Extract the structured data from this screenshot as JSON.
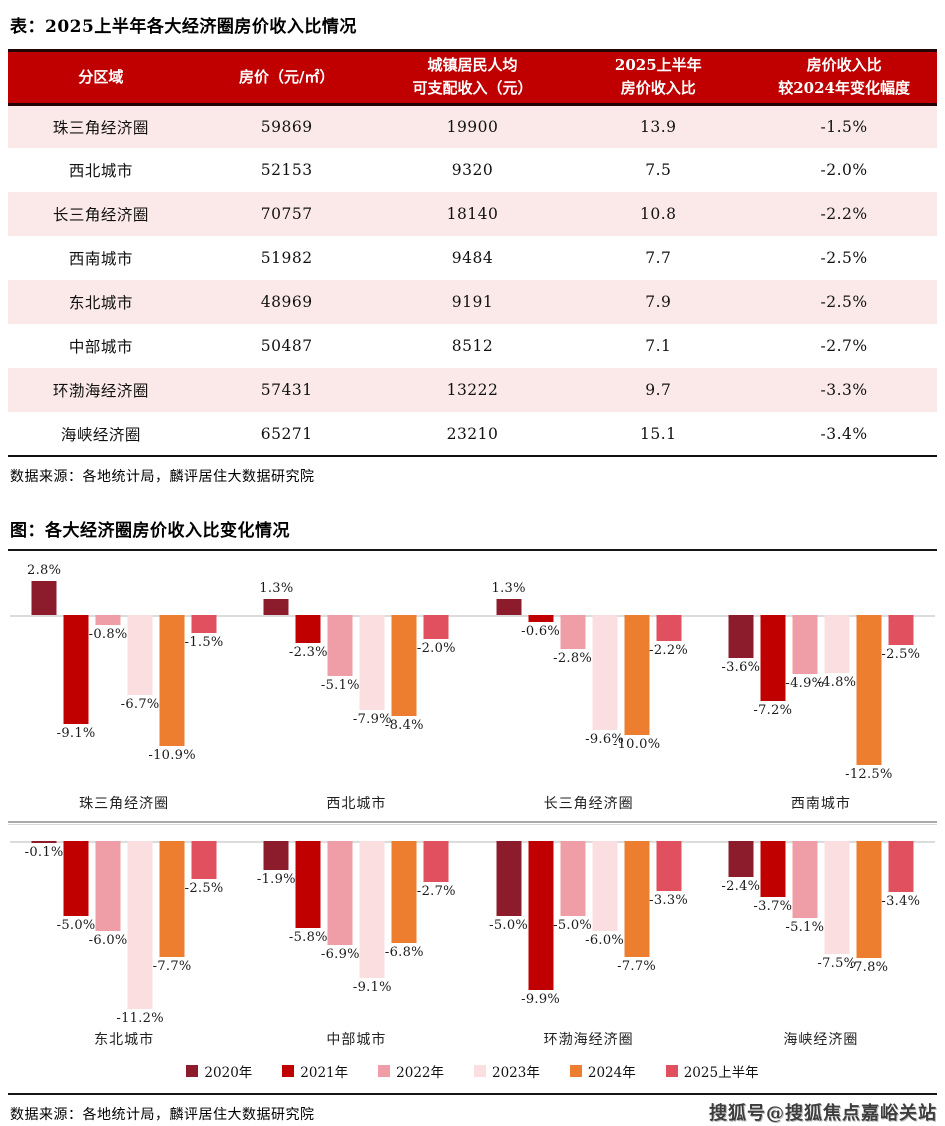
{
  "colors": {
    "table_header_bg": "#c00000",
    "table_row_alt": "#fbe9e9",
    "rule_dark": "#161616",
    "zero_line": "#dcdcdc"
  },
  "table": {
    "title": "表：2025上半年各大经济圈房价收入比情况",
    "headers": [
      [
        "分区域"
      ],
      [
        "房价（元/㎡）"
      ],
      [
        "城镇居民人均",
        "可支配收入（元）"
      ],
      [
        "2025上半年",
        "房价收入比"
      ],
      [
        "房价收入比",
        "较2024年变化幅度"
      ]
    ],
    "rows": [
      [
        "珠三角经济圈",
        "59869",
        "19900",
        "13.9",
        "-1.5%"
      ],
      [
        "西北城市",
        "52153",
        "9320",
        "7.5",
        "-2.0%"
      ],
      [
        "长三角经济圈",
        "70757",
        "18140",
        "10.8",
        "-2.2%"
      ],
      [
        "西南城市",
        "51982",
        "9484",
        "7.7",
        "-2.5%"
      ],
      [
        "东北城市",
        "48969",
        "9191",
        "7.9",
        "-2.5%"
      ],
      [
        "中部城市",
        "50487",
        "8512",
        "7.1",
        "-2.7%"
      ],
      [
        "环渤海经济圈",
        "57431",
        "13222",
        "9.7",
        "-3.3%"
      ],
      [
        "海峡经济圈",
        "65271",
        "23210",
        "15.1",
        "-3.4%"
      ]
    ],
    "source": "数据来源：各地统计局，麟评居住大数据研究院"
  },
  "chart": {
    "title": "图：各大经济圈房价收入比变化情况",
    "source": "数据来源：各地统计局，麟评居住大数据研究院",
    "watermark": "搜狐号@搜狐焦点嘉峪关站"
  },
  "chart_data": {
    "type": "bar",
    "title": "图：各大经济圈房价收入比变化情况",
    "value_unit": "%",
    "grid": false,
    "legend_position": "bottom",
    "series": [
      {
        "name": "2020年",
        "color": "#8c1c2c"
      },
      {
        "name": "2021年",
        "color": "#c00000"
      },
      {
        "name": "2022年",
        "color": "#ef9da6"
      },
      {
        "name": "2023年",
        "color": "#fbdfe0"
      },
      {
        "name": "2024年",
        "color": "#ee7e2f"
      },
      {
        "name": "2025上半年",
        "color": "#e0505f"
      }
    ],
    "rows": [
      {
        "groups": [
          {
            "name": "珠三角经济圈",
            "values": [
              2.8,
              -9.1,
              -0.8,
              -6.7,
              -10.9,
              -1.5
            ],
            "labels": [
              "2.8%",
              "-9.1%",
              "-0.8%",
              "-6.7%",
              "-10.9%",
              "-1.5%"
            ]
          },
          {
            "name": "西北城市",
            "values": [
              1.3,
              -2.3,
              -5.1,
              -7.9,
              -8.4,
              -2.0
            ],
            "labels": [
              "1.3%",
              "-2.3%",
              "-5.1%",
              "-7.9%",
              "-8.4%",
              "-2.0%"
            ]
          },
          {
            "name": "长三角经济圈",
            "values": [
              1.3,
              -0.6,
              -2.8,
              -9.6,
              -10.0,
              -2.2
            ],
            "labels": [
              "1.3%",
              "-0.6%",
              "-2.8%",
              "-9.6%",
              "-10.0%",
              "-2.2%"
            ]
          },
          {
            "name": "西南城市",
            "values": [
              -3.6,
              -7.2,
              -4.9,
              -4.8,
              -12.5,
              -2.5
            ],
            "labels": [
              "-3.6%",
              "-7.2%",
              "-4.9%",
              "-4.8%",
              "-12.5%",
              "-2.5%"
            ]
          }
        ]
      },
      {
        "groups": [
          {
            "name": "东北城市",
            "values": [
              -0.1,
              -5.0,
              -6.0,
              -11.2,
              -7.7,
              -2.5
            ],
            "labels": [
              "-0.1%",
              "-5.0%",
              "-6.0%",
              "-11.2%",
              "-7.7%",
              "-2.5%"
            ]
          },
          {
            "name": "中部城市",
            "values": [
              -1.9,
              -5.8,
              -6.9,
              -9.1,
              -6.8,
              -2.7
            ],
            "labels": [
              "-1.9%",
              "-5.8%",
              "-6.9%",
              "-9.1%",
              "-6.8%",
              "-2.7%"
            ]
          },
          {
            "name": "环渤海经济圈",
            "values": [
              -5.0,
              -9.9,
              -5.0,
              -6.0,
              -7.7,
              -3.3
            ],
            "labels": [
              "-5.0%",
              "-9.9%",
              "-5.0%",
              "-6.0%",
              "-7.7%",
              "-3.3%"
            ]
          },
          {
            "name": "海峡经济圈",
            "values": [
              -2.4,
              -3.7,
              -5.1,
              -7.5,
              -7.8,
              -3.4
            ],
            "labels": [
              "-2.4%",
              "-3.7%",
              "-5.1%",
              "-7.5%",
              "-7.8%",
              "-3.4%"
            ]
          }
        ]
      }
    ]
  }
}
